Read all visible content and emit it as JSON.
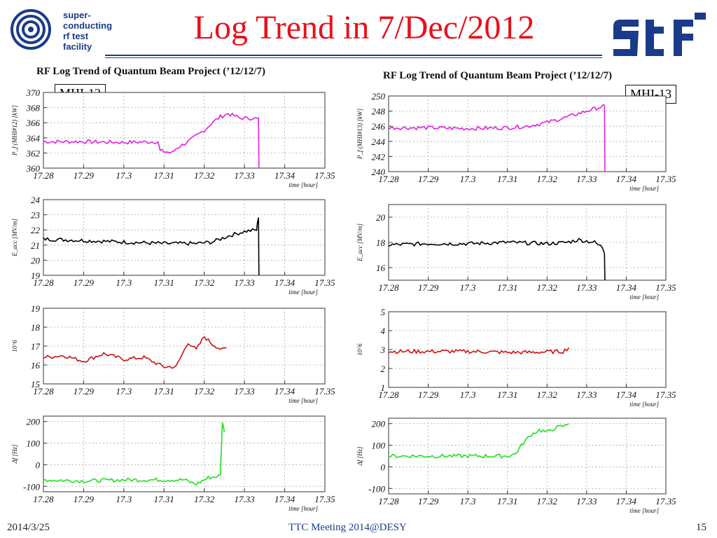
{
  "slide": {
    "title": "Log Trend in 7/Dec/2012",
    "org_lines": [
      "super-",
      "conducting",
      "rf  test",
      "facility"
    ],
    "logo_right": "stf",
    "footer": {
      "date": "2014/3/25",
      "meeting": "TTC Meeting 2014@DESY",
      "page": "15"
    }
  },
  "panels": {
    "left": {
      "title": "RF Log Trend of Quantum Beam Project (’12/12/7)",
      "tag": "MHI-12"
    },
    "right": {
      "title": "RF Log Trend of Quantum Beam Project (’12/12/7)",
      "tag": "MHI-13"
    }
  },
  "colors": {
    "power": "#e020e0",
    "eacc": "#000000",
    "q": "#cc1010",
    "df": "#22dd22",
    "title": "#e8101a",
    "navy": "#1a3a8a"
  },
  "chart_data": [
    {
      "id": "left-power",
      "type": "line",
      "xlabel": "time [hour]",
      "ylabel": "P_f (MHI#12) [kW]",
      "xticks": [
        "17.28",
        "17.29",
        "17.3",
        "17.31",
        "17.32",
        "17.33",
        "17.34",
        "17.35"
      ],
      "xlim": [
        17.28,
        17.35
      ],
      "ylim": [
        360,
        370
      ],
      "yticks": [
        "360",
        "362",
        "364",
        "366",
        "368",
        "370"
      ],
      "grid": true,
      "series": [
        {
          "color": "#e020e0",
          "x": [
            17.28,
            17.29,
            17.3,
            17.3085,
            17.309,
            17.312,
            17.313,
            17.316,
            17.32,
            17.322,
            17.324,
            17.326,
            17.329,
            17.332,
            17.3335,
            17.3336
          ],
          "y": [
            363.5,
            363.5,
            363.4,
            363.5,
            362.3,
            362.0,
            362.6,
            363.5,
            365.0,
            366.0,
            366.8,
            367.2,
            366.6,
            366.6,
            366.5,
            360
          ]
        }
      ]
    },
    {
      "id": "left-eacc",
      "type": "line",
      "xlabel": "time [hour]",
      "ylabel": "E_acc [MV/m]",
      "xticks": [
        "17.28",
        "17.29",
        "17.3",
        "17.31",
        "17.32",
        "17.33",
        "17.34",
        "17.35"
      ],
      "xlim": [
        17.28,
        17.35
      ],
      "ylim": [
        19,
        24
      ],
      "yticks": [
        "19",
        "20",
        "21",
        "22",
        "23",
        "24"
      ],
      "grid": true,
      "series": [
        {
          "color": "#000000",
          "x": [
            17.28,
            17.29,
            17.3,
            17.31,
            17.318,
            17.322,
            17.326,
            17.33,
            17.333,
            17.3335,
            17.3336
          ],
          "y": [
            21.4,
            21.3,
            21.2,
            21.1,
            21.1,
            21.2,
            21.6,
            21.9,
            22.0,
            22.9,
            19
          ]
        }
      ]
    },
    {
      "id": "left-q",
      "type": "line",
      "xlabel": "time [hour]",
      "ylabel": "10^6",
      "xticks": [
        "17.28",
        "17.29",
        "17.3",
        "17.31",
        "17.32",
        "17.33",
        "17.34",
        "17.35"
      ],
      "xlim": [
        17.28,
        17.35
      ],
      "ylim": [
        15,
        19
      ],
      "yticks": [
        "15",
        "16",
        "17",
        "18",
        "19"
      ],
      "grid": true,
      "series": [
        {
          "color": "#cc1010",
          "x": [
            17.28,
            17.285,
            17.29,
            17.295,
            17.3,
            17.305,
            17.31,
            17.313,
            17.316,
            17.318,
            17.32,
            17.322,
            17.3245,
            17.3255
          ],
          "y": [
            16.4,
            16.5,
            16.2,
            16.6,
            16.3,
            16.4,
            15.9,
            15.9,
            17.2,
            16.8,
            17.5,
            17.1,
            16.8,
            16.9
          ]
        }
      ]
    },
    {
      "id": "left-df",
      "type": "line",
      "xlabel": "time [hour]",
      "ylabel": "Δf [Hz]",
      "xticks": [
        "17.28",
        "17.29",
        "17.3",
        "17.31",
        "17.32",
        "17.33",
        "17.34",
        "17.35"
      ],
      "xlim": [
        17.28,
        17.35
      ],
      "ylim": [
        -125,
        225
      ],
      "yticks": [
        "-100",
        "0",
        "100",
        "200"
      ],
      "grid": true,
      "series": [
        {
          "color": "#22dd22",
          "x": [
            17.28,
            17.29,
            17.3,
            17.31,
            17.315,
            17.318,
            17.321,
            17.323,
            17.324,
            17.3245,
            17.325
          ],
          "y": [
            -70,
            -75,
            -70,
            -70,
            -70,
            -90,
            -60,
            -55,
            -50,
            200,
            150
          ]
        }
      ]
    },
    {
      "id": "right-power",
      "type": "line",
      "xlabel": "time [hour]",
      "ylabel": "P_f (MHI#13) [kW]",
      "xticks": [
        "17.28",
        "17.29",
        "17.3",
        "17.31",
        "17.32",
        "17.33",
        "17.34",
        "17.35"
      ],
      "xlim": [
        17.28,
        17.35
      ],
      "ylim": [
        240,
        250
      ],
      "yticks": [
        "240",
        "242",
        "244",
        "246",
        "248",
        "250"
      ],
      "grid": true,
      "series": [
        {
          "color": "#e020e0",
          "x": [
            17.28,
            17.29,
            17.3,
            17.31,
            17.315,
            17.32,
            17.325,
            17.33,
            17.334,
            17.3345,
            17.3346
          ],
          "y": [
            245.8,
            245.8,
            245.7,
            245.8,
            246.0,
            246.5,
            247.2,
            248.0,
            248.6,
            248.6,
            240
          ]
        }
      ]
    },
    {
      "id": "right-eacc",
      "type": "line",
      "xlabel": "time [hour]",
      "ylabel": "E_acc [MV/m]",
      "xticks": [
        "17.28",
        "17.29",
        "17.3",
        "17.31",
        "17.32",
        "17.33",
        "17.34",
        "17.35"
      ],
      "xlim": [
        17.28,
        17.35
      ],
      "ylim": [
        15,
        21
      ],
      "yticks": [
        "16",
        "18",
        "20"
      ],
      "grid": true,
      "series": [
        {
          "color": "#000000",
          "x": [
            17.28,
            17.29,
            17.3,
            17.31,
            17.32,
            17.325,
            17.328,
            17.332,
            17.334,
            17.3345,
            17.3346
          ],
          "y": [
            17.8,
            17.9,
            17.9,
            18.0,
            17.9,
            18.0,
            18.2,
            18.0,
            17.6,
            17.2,
            15
          ]
        }
      ]
    },
    {
      "id": "right-q",
      "type": "line",
      "xlabel": "time [hour]",
      "ylabel": "10^6",
      "xticks": [
        "17.28",
        "17.29",
        "17.3",
        "17.31",
        "17.32",
        "17.33",
        "17.34",
        "17.35"
      ],
      "xlim": [
        17.28,
        17.35
      ],
      "ylim": [
        1,
        5
      ],
      "yticks": [
        "1",
        "2",
        "3",
        "4",
        "5"
      ],
      "grid": true,
      "series": [
        {
          "color": "#cc1010",
          "x": [
            17.28,
            17.29,
            17.3,
            17.305,
            17.31,
            17.315,
            17.32,
            17.324,
            17.3255
          ],
          "y": [
            2.9,
            2.9,
            2.9,
            2.88,
            2.85,
            2.85,
            2.88,
            2.9,
            3.1
          ]
        }
      ]
    },
    {
      "id": "right-df",
      "type": "line",
      "xlabel": "time [hour]",
      "ylabel": "Δf [Hz]",
      "xticks": [
        "17.28",
        "17.29",
        "17.3",
        "17.31",
        "17.32",
        "17.33",
        "17.34",
        "17.35"
      ],
      "xlim": [
        17.28,
        17.35
      ],
      "ylim": [
        -125,
        225
      ],
      "yticks": [
        "-100",
        "0",
        "100",
        "200"
      ],
      "grid": true,
      "series": [
        {
          "color": "#22dd22",
          "x": [
            17.28,
            17.29,
            17.3,
            17.31,
            17.312,
            17.314,
            17.316,
            17.318,
            17.32,
            17.322,
            17.3245,
            17.3255
          ],
          "y": [
            50,
            50,
            50,
            50,
            60,
            110,
            150,
            170,
            160,
            180,
            190,
            200
          ]
        }
      ]
    }
  ]
}
